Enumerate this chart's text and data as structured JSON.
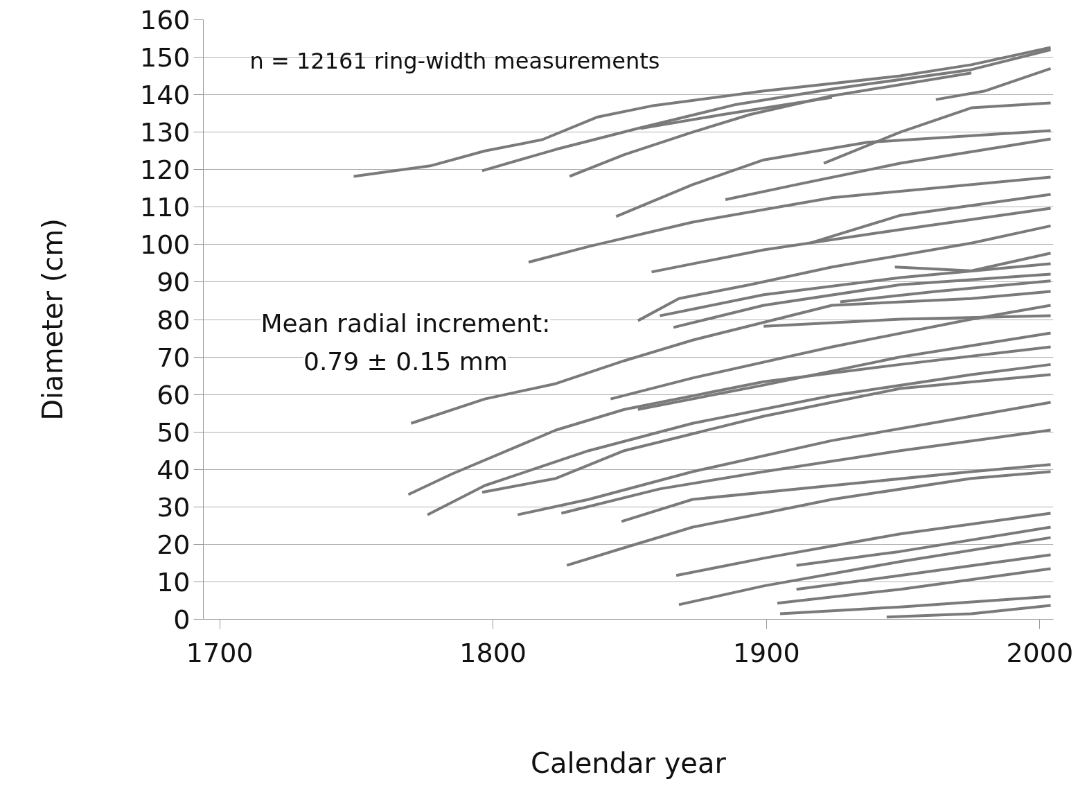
{
  "chart_data": {
    "type": "line",
    "xlabel": "Calendar year",
    "ylabel": "Diameter (cm)",
    "xlim": [
      1694,
      2005
    ],
    "ylim": [
      0,
      160
    ],
    "xticks": [
      1700,
      1800,
      1900,
      2000
    ],
    "yticks": [
      0,
      10,
      20,
      30,
      40,
      50,
      60,
      70,
      80,
      90,
      100,
      110,
      120,
      130,
      140,
      150,
      160
    ],
    "grid": "y",
    "marker": "none",
    "line_style": "solid",
    "annotations": [
      "n = 12161 ring-width  measurements",
      "Mean radial increment:\n0.79 ± 0.15 mm"
    ],
    "series": [
      {
        "color": "#7a7a7a",
        "x": [
          1749,
          1777,
          1797,
          1818,
          1838,
          1858,
          1899,
          1924,
          1949,
          1975,
          2004
        ],
        "values": [
          118.2,
          121,
          125,
          128,
          134,
          137,
          141,
          143,
          145,
          148,
          152.6
        ]
      },
      {
        "color": "#7a7a7a",
        "x": [
          1796,
          1823,
          1853,
          1889,
          1924,
          1975,
          2004
        ],
        "values": [
          119.7,
          125.4,
          131,
          137.4,
          141.5,
          146.7,
          152
        ]
      },
      {
        "color": "#7a7a7a",
        "x": [
          1828,
          1848,
          1873,
          1894,
          1924,
          1975
        ],
        "values": [
          118.2,
          124,
          130,
          134.7,
          139.7,
          145.8
        ]
      },
      {
        "color": "#7a7a7a",
        "x": [
          1854,
          1884,
          1924
        ],
        "values": [
          131,
          134.7,
          139.3
        ]
      },
      {
        "color": "#7a7a7a",
        "x": [
          1962,
          1980,
          2004
        ],
        "values": [
          138.7,
          141,
          147
        ]
      },
      {
        "color": "#7a7a7a",
        "x": [
          1921,
          1949,
          1975,
          2004
        ],
        "values": [
          121.7,
          130,
          136.5,
          137.8
        ]
      },
      {
        "color": "#7a7a7a",
        "x": [
          1845,
          1873,
          1899,
          1937,
          2004
        ],
        "values": [
          107.5,
          116,
          122.6,
          127.3,
          130.4
        ]
      },
      {
        "color": "#7a7a7a",
        "x": [
          1885,
          1911,
          1949,
          2004
        ],
        "values": [
          112,
          116,
          121.7,
          128.2
        ]
      },
      {
        "color": "#7a7a7a",
        "x": [
          1813,
          1835,
          1873,
          1924,
          2004
        ],
        "values": [
          95.3,
          99.5,
          106,
          112.5,
          118
        ]
      },
      {
        "color": "#7a7a7a",
        "x": [
          1916,
          1949,
          2004
        ],
        "values": [
          100.4,
          107.8,
          113.4
        ]
      },
      {
        "color": "#7a7a7a",
        "x": [
          1858,
          1899,
          1949,
          2004
        ],
        "values": [
          92.7,
          98.6,
          104,
          109.7
        ]
      },
      {
        "color": "#7a7a7a",
        "x": [
          1853,
          1868,
          1894,
          1924,
          1975,
          2004
        ],
        "values": [
          79.7,
          85.6,
          89.3,
          94,
          100.4,
          105
        ]
      },
      {
        "color": "#7a7a7a",
        "x": [
          1861,
          1899,
          1949,
          2004
        ],
        "values": [
          81,
          86.6,
          91.2,
          94.9
        ]
      },
      {
        "color": "#7a7a7a",
        "x": [
          1866,
          1899,
          1949,
          2004
        ],
        "values": [
          77.9,
          83.8,
          89.3,
          92.1
        ]
      },
      {
        "color": "#7a7a7a",
        "x": [
          1927,
          1962,
          2004
        ],
        "values": [
          84.7,
          87.5,
          90.3
        ]
      },
      {
        "color": "#7a7a7a",
        "x": [
          1947,
          1975,
          2004
        ],
        "values": [
          94,
          93,
          97.7
        ]
      },
      {
        "color": "#7a7a7a",
        "x": [
          1770,
          1797,
          1823,
          1848,
          1873,
          1924,
          1975,
          2004
        ],
        "values": [
          52.3,
          58.8,
          62.9,
          69,
          74.5,
          83.8,
          85.6,
          87.5
        ]
      },
      {
        "color": "#7a7a7a",
        "x": [
          1843,
          1873,
          1924,
          1975,
          2004
        ],
        "values": [
          58.8,
          64.4,
          72.7,
          80.1,
          83.8
        ]
      },
      {
        "color": "#7a7a7a",
        "x": [
          1853,
          1899,
          1949,
          2004
        ],
        "values": [
          56,
          62.5,
          70,
          76.4
        ]
      },
      {
        "color": "#7a7a7a",
        "x": [
          1769,
          1785,
          1823,
          1848,
          1899,
          1949,
          2004
        ],
        "values": [
          33.3,
          38.8,
          50.5,
          56,
          63.4,
          68,
          72.7
        ]
      },
      {
        "color": "#7a7a7a",
        "x": [
          1776,
          1797,
          1835,
          1873,
          1924,
          1975,
          2004
        ],
        "values": [
          27.9,
          35.7,
          45,
          52.3,
          59.7,
          65.3,
          68
        ]
      },
      {
        "color": "#7a7a7a",
        "x": [
          1796,
          1823,
          1848,
          1899,
          1949,
          2004
        ],
        "values": [
          33.9,
          37.6,
          45,
          54.2,
          61.6,
          65.3
        ]
      },
      {
        "color": "#7a7a7a",
        "x": [
          1809,
          1835,
          1873,
          1924,
          1975,
          2004
        ],
        "values": [
          27.9,
          32,
          39.4,
          47.7,
          54.2,
          57.9
        ]
      },
      {
        "color": "#7a7a7a",
        "x": [
          1825,
          1861,
          1899,
          1949,
          2004
        ],
        "values": [
          28.3,
          34.8,
          39.4,
          45,
          50.5
        ]
      },
      {
        "color": "#7a7a7a",
        "x": [
          1847,
          1873,
          1924,
          1975,
          2004
        ],
        "values": [
          26.1,
          32,
          35.7,
          39.4,
          41.3
        ]
      },
      {
        "color": "#7a7a7a",
        "x": [
          1827,
          1848,
          1873,
          1899,
          1924,
          1975,
          2004
        ],
        "values": [
          14.4,
          19.1,
          24.6,
          28.3,
          32,
          37.6,
          39.4
        ]
      },
      {
        "color": "#7a7a7a",
        "x": [
          1867,
          1899,
          1949,
          2004
        ],
        "values": [
          11.7,
          16.3,
          22.8,
          28.3
        ]
      },
      {
        "color": "#7a7a7a",
        "x": [
          1868,
          1899,
          1949,
          2004
        ],
        "values": [
          3.9,
          8.9,
          15.4,
          21.8
        ]
      },
      {
        "color": "#7a7a7a",
        "x": [
          1904,
          1949,
          2004
        ],
        "values": [
          4.3,
          8,
          13.5
        ]
      },
      {
        "color": "#7a7a7a",
        "x": [
          1905,
          1949,
          2004
        ],
        "values": [
          1.5,
          3.3,
          6.1
        ]
      },
      {
        "color": "#7a7a7a",
        "x": [
          1944,
          1975,
          2004
        ],
        "values": [
          0.6,
          1.5,
          3.7
        ]
      },
      {
        "color": "#7a7a7a",
        "x": [
          1911,
          1949,
          2004
        ],
        "values": [
          14.4,
          18.1,
          24.6
        ]
      },
      {
        "color": "#7a7a7a",
        "x": [
          1911,
          1949,
          2004
        ],
        "values": [
          8,
          11.7,
          17.2
        ]
      },
      {
        "color": "#7a7a7a",
        "x": [
          1899,
          1949,
          2004
        ],
        "values": [
          78.2,
          80.1,
          81
        ]
      }
    ]
  }
}
